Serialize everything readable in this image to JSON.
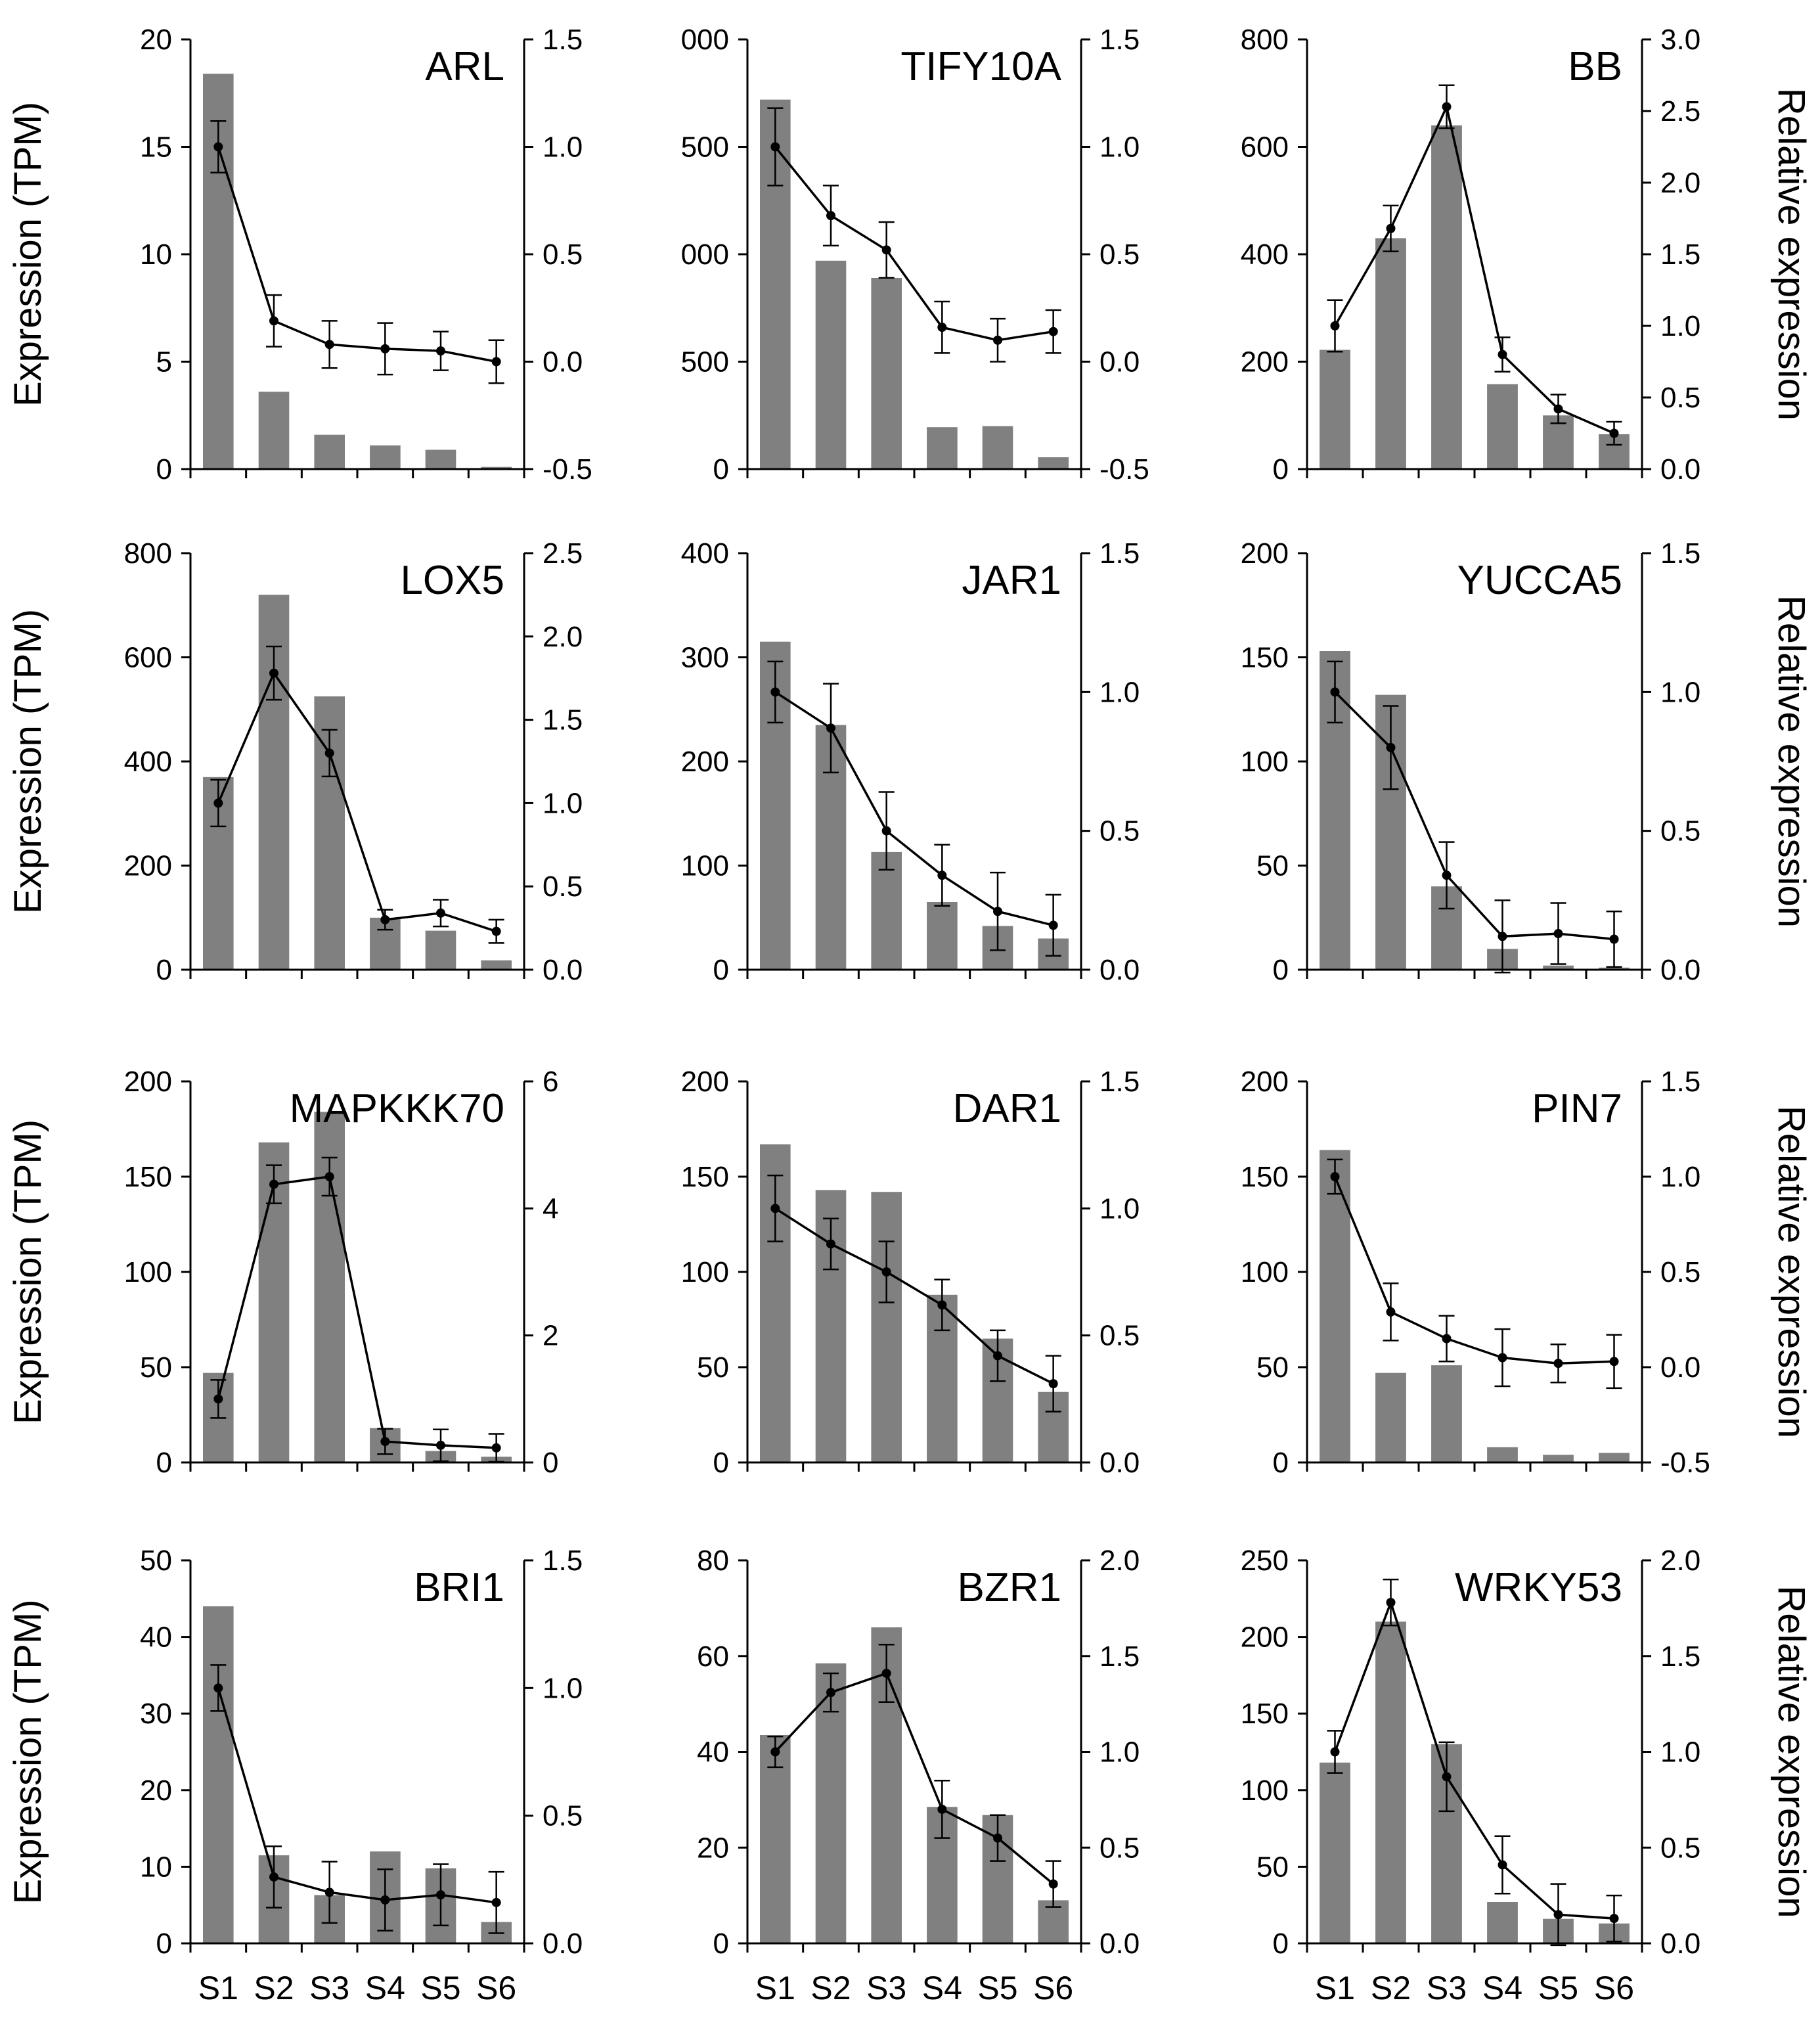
{
  "colors": {
    "bar": "#808080",
    "line": "#000000",
    "axis": "#000000",
    "background": "#ffffff"
  },
  "chart_data": [
    {
      "type": "bar",
      "title": "ARL",
      "categories": [
        "S1",
        "S2",
        "S3",
        "S4",
        "S5",
        "S6"
      ],
      "ylabel": "Expression (TPM)",
      "y2label": "",
      "ylim": [
        0,
        20
      ],
      "yticks": [
        "0",
        "5",
        "10",
        "15",
        "20"
      ],
      "y2lim": [
        -0.5,
        1.5
      ],
      "y2ticks": [
        "-0.5",
        "0.0",
        "0.5",
        "1.0",
        "1.5"
      ],
      "show_xcat": false,
      "series": [
        {
          "name": "Expression (TPM)",
          "type": "bar",
          "axis": "left",
          "values": [
            18.4,
            3.6,
            1.6,
            1.1,
            0.9,
            0.1
          ]
        },
        {
          "name": "Relative expression",
          "type": "line",
          "axis": "right",
          "values": [
            1.0,
            0.19,
            0.08,
            0.06,
            0.05,
            0.0
          ],
          "error": [
            0.12,
            0.12,
            0.11,
            0.12,
            0.09,
            0.1
          ]
        }
      ]
    },
    {
      "type": "bar",
      "title": "TIFY10A",
      "categories": [
        "S1",
        "S2",
        "S3",
        "S4",
        "S5",
        "S6"
      ],
      "ylabel": "",
      "y2label": "",
      "ylim": [
        0,
        2000
      ],
      "yticks": [
        "0",
        "500",
        "000",
        "500",
        "000"
      ],
      "y2lim": [
        -0.5,
        1.5
      ],
      "y2ticks": [
        "-0.5",
        "0.0",
        "0.5",
        "1.0",
        "1.5"
      ],
      "show_xcat": false,
      "series": [
        {
          "name": "Expression (TPM)",
          "type": "bar",
          "axis": "left",
          "values": [
            1720,
            970,
            890,
            195,
            200,
            55
          ]
        },
        {
          "name": "Relative expression",
          "type": "line",
          "axis": "right",
          "values": [
            1.0,
            0.68,
            0.52,
            0.16,
            0.1,
            0.14
          ],
          "error": [
            0.18,
            0.14,
            0.13,
            0.12,
            0.1,
            0.1
          ]
        }
      ]
    },
    {
      "type": "bar",
      "title": "BB",
      "categories": [
        "S1",
        "S2",
        "S3",
        "S4",
        "S5",
        "S6"
      ],
      "ylabel": "",
      "y2label": "Relative expression",
      "ylim": [
        0,
        800
      ],
      "yticks": [
        "0",
        "200",
        "400",
        "600",
        "800"
      ],
      "y2lim": [
        0,
        3.0
      ],
      "y2ticks": [
        "0.0",
        "0.5",
        "1.0",
        "1.5",
        "2.0",
        "2.5",
        "3.0"
      ],
      "show_xcat": false,
      "series": [
        {
          "name": "Expression (TPM)",
          "type": "bar",
          "axis": "left",
          "values": [
            222,
            430,
            640,
            158,
            100,
            65
          ]
        },
        {
          "name": "Relative expression",
          "type": "line",
          "axis": "right",
          "values": [
            1.0,
            1.68,
            2.53,
            0.8,
            0.42,
            0.25
          ],
          "error": [
            0.18,
            0.16,
            0.15,
            0.12,
            0.1,
            0.08
          ]
        }
      ]
    },
    {
      "type": "bar",
      "title": "LOX5",
      "categories": [
        "S1",
        "S2",
        "S3",
        "S4",
        "S5",
        "S6"
      ],
      "ylabel": "Expression (TPM)",
      "y2label": "",
      "ylim": [
        0,
        800
      ],
      "yticks": [
        "0",
        "200",
        "400",
        "600",
        "800"
      ],
      "y2lim": [
        0,
        2.5
      ],
      "y2ticks": [
        "0.0",
        "0.5",
        "1.0",
        "1.5",
        "2.0",
        "2.5"
      ],
      "show_xcat": false,
      "series": [
        {
          "name": "Expression (TPM)",
          "type": "bar",
          "axis": "left",
          "values": [
            370,
            720,
            525,
            100,
            75,
            18
          ]
        },
        {
          "name": "Relative expression",
          "type": "line",
          "axis": "right",
          "values": [
            1.0,
            1.78,
            1.3,
            0.3,
            0.34,
            0.23
          ],
          "error": [
            0.14,
            0.16,
            0.14,
            0.06,
            0.08,
            0.07
          ]
        }
      ]
    },
    {
      "type": "bar",
      "title": "JAR1",
      "categories": [
        "S1",
        "S2",
        "S3",
        "S4",
        "S5",
        "S6"
      ],
      "ylabel": "",
      "y2label": "",
      "ylim": [
        0,
        400
      ],
      "yticks": [
        "0",
        "100",
        "200",
        "300",
        "400"
      ],
      "y2lim": [
        0,
        1.5
      ],
      "y2ticks": [
        "0.0",
        "0.5",
        "1.0",
        "1.5"
      ],
      "show_xcat": false,
      "series": [
        {
          "name": "Expression (TPM)",
          "type": "bar",
          "axis": "left",
          "values": [
            315,
            235,
            113,
            65,
            42,
            30
          ]
        },
        {
          "name": "Relative expression",
          "type": "line",
          "axis": "right",
          "values": [
            1.0,
            0.87,
            0.5,
            0.34,
            0.21,
            0.16
          ],
          "error": [
            0.11,
            0.16,
            0.14,
            0.11,
            0.14,
            0.11
          ]
        }
      ]
    },
    {
      "type": "bar",
      "title": "YUCCA5",
      "categories": [
        "S1",
        "S2",
        "S3",
        "S4",
        "S5",
        "S6"
      ],
      "ylabel": "",
      "y2label": "Relative expression",
      "ylim": [
        0,
        200
      ],
      "yticks": [
        "0",
        "50",
        "100",
        "150",
        "200"
      ],
      "y2lim": [
        0,
        1.5
      ],
      "y2ticks": [
        "0.0",
        "0.5",
        "1.0",
        "1.5"
      ],
      "show_xcat": false,
      "series": [
        {
          "name": "Expression (TPM)",
          "type": "bar",
          "axis": "left",
          "values": [
            153,
            132,
            40,
            10,
            2,
            1
          ]
        },
        {
          "name": "Relative expression",
          "type": "line",
          "axis": "right",
          "values": [
            1.0,
            0.8,
            0.34,
            0.12,
            0.13,
            0.11
          ],
          "error": [
            0.11,
            0.15,
            0.12,
            0.13,
            0.11,
            0.1
          ]
        }
      ]
    },
    {
      "type": "bar",
      "title": "MAPKKK70",
      "categories": [
        "S1",
        "S2",
        "S3",
        "S4",
        "S5",
        "S6"
      ],
      "ylabel": "Expression (TPM)",
      "y2label": "",
      "ylim": [
        0,
        200
      ],
      "yticks": [
        "0",
        "50",
        "100",
        "150",
        "200"
      ],
      "y2lim": [
        0,
        6
      ],
      "y2ticks": [
        "0",
        "2",
        "4",
        "6"
      ],
      "show_xcat": false,
      "series": [
        {
          "name": "Expression (TPM)",
          "type": "bar",
          "axis": "left",
          "values": [
            47,
            168,
            184,
            18,
            6,
            3
          ]
        },
        {
          "name": "Relative expression",
          "type": "line",
          "axis": "right",
          "values": [
            1.0,
            4.38,
            4.5,
            0.33,
            0.27,
            0.23
          ],
          "error": [
            0.3,
            0.3,
            0.3,
            0.2,
            0.25,
            0.22
          ]
        }
      ]
    },
    {
      "type": "bar",
      "title": "DAR1",
      "categories": [
        "S1",
        "S2",
        "S3",
        "S4",
        "S5",
        "S6"
      ],
      "ylabel": "",
      "y2label": "",
      "ylim": [
        0,
        200
      ],
      "yticks": [
        "0",
        "50",
        "100",
        "150",
        "200"
      ],
      "y2lim": [
        0,
        1.5
      ],
      "y2ticks": [
        "0.0",
        "0.5",
        "1.0",
        "1.5"
      ],
      "show_xcat": false,
      "series": [
        {
          "name": "Expression (TPM)",
          "type": "bar",
          "axis": "left",
          "values": [
            167,
            143,
            142,
            88,
            65,
            37
          ]
        },
        {
          "name": "Relative expression",
          "type": "line",
          "axis": "right",
          "values": [
            1.0,
            0.86,
            0.75,
            0.62,
            0.42,
            0.31
          ],
          "error": [
            0.13,
            0.1,
            0.12,
            0.1,
            0.1,
            0.11
          ]
        }
      ]
    },
    {
      "type": "bar",
      "title": "PIN7",
      "categories": [
        "S1",
        "S2",
        "S3",
        "S4",
        "S5",
        "S6"
      ],
      "ylabel": "",
      "y2label": "Relative expression",
      "ylim": [
        0,
        200
      ],
      "yticks": [
        "0",
        "50",
        "100",
        "150",
        "200"
      ],
      "y2lim": [
        -0.5,
        1.5
      ],
      "y2ticks": [
        "-0.5",
        "0.0",
        "0.5",
        "1.0",
        "1.5"
      ],
      "show_xcat": false,
      "series": [
        {
          "name": "Expression (TPM)",
          "type": "bar",
          "axis": "left",
          "values": [
            164,
            47,
            51,
            8,
            4,
            5
          ]
        },
        {
          "name": "Relative expression",
          "type": "line",
          "axis": "right",
          "values": [
            1.0,
            0.29,
            0.15,
            0.05,
            0.02,
            0.03
          ],
          "error": [
            0.09,
            0.15,
            0.12,
            0.15,
            0.1,
            0.14
          ]
        }
      ]
    },
    {
      "type": "bar",
      "title": "BRI1",
      "categories": [
        "S1",
        "S2",
        "S3",
        "S4",
        "S5",
        "S6"
      ],
      "ylabel": "Expression (TPM)",
      "y2label": "",
      "ylim": [
        0,
        50
      ],
      "yticks": [
        "0",
        "10",
        "20",
        "30",
        "40",
        "50"
      ],
      "y2lim": [
        0,
        1.5
      ],
      "y2ticks": [
        "0.0",
        "0.5",
        "1.0",
        "1.5"
      ],
      "show_xcat": true,
      "series": [
        {
          "name": "Expression (TPM)",
          "type": "bar",
          "axis": "left",
          "values": [
            44,
            11.5,
            6.3,
            12,
            9.8,
            2.8
          ]
        },
        {
          "name": "Relative expression",
          "type": "line",
          "axis": "right",
          "values": [
            1.0,
            0.26,
            0.2,
            0.17,
            0.19,
            0.16
          ],
          "error": [
            0.09,
            0.12,
            0.12,
            0.12,
            0.12,
            0.12
          ]
        }
      ]
    },
    {
      "type": "bar",
      "title": "BZR1",
      "categories": [
        "S1",
        "S2",
        "S3",
        "S4",
        "S5",
        "S6"
      ],
      "ylabel": "",
      "y2label": "",
      "ylim": [
        0,
        80
      ],
      "yticks": [
        "0",
        "20",
        "40",
        "60",
        "80"
      ],
      "y2lim": [
        0,
        2.0
      ],
      "y2ticks": [
        "0.0",
        "0.5",
        "1.0",
        "1.5",
        "2.0"
      ],
      "show_xcat": true,
      "series": [
        {
          "name": "Expression (TPM)",
          "type": "bar",
          "axis": "left",
          "values": [
            43.5,
            58.5,
            66,
            28.5,
            26.8,
            9
          ]
        },
        {
          "name": "Relative expression",
          "type": "line",
          "axis": "right",
          "values": [
            1.0,
            1.31,
            1.41,
            0.7,
            0.55,
            0.31
          ],
          "error": [
            0.08,
            0.1,
            0.15,
            0.15,
            0.12,
            0.12
          ]
        }
      ]
    },
    {
      "type": "bar",
      "title": "WRKY53",
      "categories": [
        "S1",
        "S2",
        "S3",
        "S4",
        "S5",
        "S6"
      ],
      "ylabel": "",
      "y2label": "Relative expression",
      "ylim": [
        0,
        250
      ],
      "yticks": [
        "0",
        "50",
        "100",
        "150",
        "200",
        "250"
      ],
      "y2lim": [
        0,
        2.0
      ],
      "y2ticks": [
        "0.0",
        "0.5",
        "1.0",
        "1.5",
        "2.0"
      ],
      "show_xcat": true,
      "series": [
        {
          "name": "Expression (TPM)",
          "type": "bar",
          "axis": "left",
          "values": [
            118,
            210,
            130,
            27,
            16,
            13
          ]
        },
        {
          "name": "Relative expression",
          "type": "line",
          "axis": "right",
          "values": [
            1.0,
            1.78,
            0.87,
            0.41,
            0.15,
            0.13
          ],
          "error": [
            0.11,
            0.12,
            0.18,
            0.15,
            0.16,
            0.12
          ]
        }
      ]
    }
  ]
}
